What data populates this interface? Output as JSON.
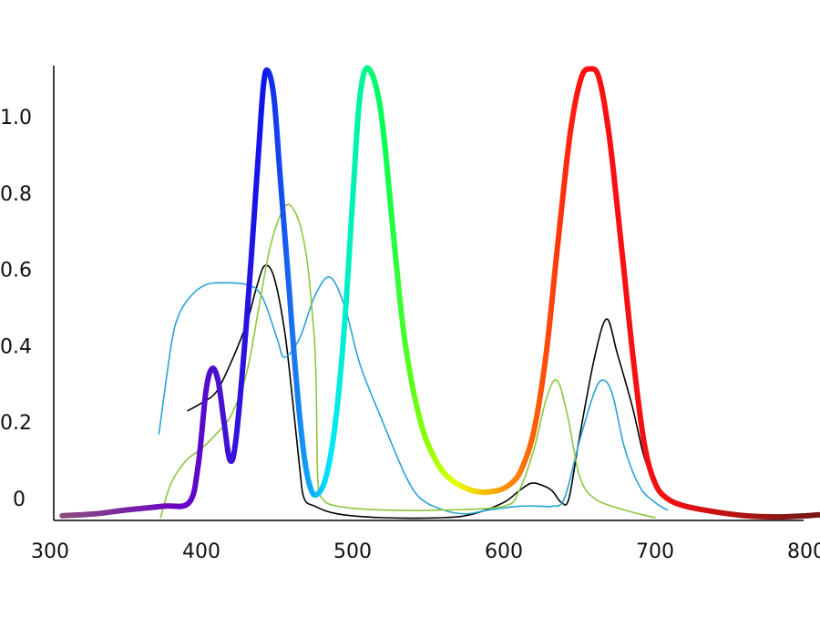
{
  "chart_data": {
    "type": "line",
    "title": "",
    "xlabel": "",
    "ylabel": "",
    "xlim": [
      300,
      800
    ],
    "ylim": [
      -0.05,
      1.15
    ],
    "x_ticks": [
      {
        "value": 300,
        "label": "300"
      },
      {
        "value": 400,
        "label": "400"
      },
      {
        "value": 500,
        "label": "500"
      },
      {
        "value": 600,
        "label": "600"
      },
      {
        "value": 700,
        "label": "700"
      },
      {
        "value": 800,
        "label": "800"
      }
    ],
    "y_ticks": [
      {
        "value": 0,
        "label": "0"
      },
      {
        "value": 0.2,
        "label": "0.2"
      },
      {
        "value": 0.4,
        "label": "0.4"
      },
      {
        "value": 0.6,
        "label": "0.6"
      },
      {
        "value": 0.8,
        "label": "0.8"
      },
      {
        "value": 1.0,
        "label": "1.0"
      }
    ],
    "grid": false,
    "legend": "none",
    "series": [
      {
        "color": "#000000",
        "points": [
          [
            391,
            0.23
          ],
          [
            400,
            0.25
          ],
          [
            410,
            0.28
          ],
          [
            420,
            0.36
          ],
          [
            430,
            0.46
          ],
          [
            437,
            0.56
          ],
          [
            442,
            0.61
          ],
          [
            448,
            0.58
          ],
          [
            455,
            0.44
          ],
          [
            460,
            0.27
          ],
          [
            465,
            0.08
          ],
          [
            468,
            0.0
          ],
          [
            475,
            -0.02
          ],
          [
            490,
            -0.04
          ],
          [
            520,
            -0.05
          ],
          [
            560,
            -0.05
          ],
          [
            580,
            -0.04
          ],
          [
            600,
            -0.01
          ],
          [
            610,
            0.02
          ],
          [
            618,
            0.04
          ],
          [
            625,
            0.035
          ],
          [
            632,
            0.02
          ],
          [
            638,
            -0.01
          ],
          [
            643,
            0.0
          ],
          [
            650,
            0.16
          ],
          [
            660,
            0.37
          ],
          [
            668,
            0.47
          ],
          [
            675,
            0.38
          ],
          [
            685,
            0.24
          ],
          [
            692,
            0.12
          ],
          [
            698,
            0.05
          ]
        ]
      },
      {
        "color": "#2aa3d8",
        "points": [
          [
            372,
            0.17
          ],
          [
            380,
            0.4
          ],
          [
            385,
            0.48
          ],
          [
            393,
            0.53
          ],
          [
            403,
            0.56
          ],
          [
            415,
            0.565
          ],
          [
            430,
            0.56
          ],
          [
            440,
            0.53
          ],
          [
            450,
            0.42
          ],
          [
            455,
            0.37
          ],
          [
            465,
            0.42
          ],
          [
            475,
            0.53
          ],
          [
            485,
            0.58
          ],
          [
            495,
            0.5
          ],
          [
            505,
            0.35
          ],
          [
            520,
            0.2
          ],
          [
            535,
            0.06
          ],
          [
            545,
            0.0
          ],
          [
            560,
            -0.03
          ],
          [
            575,
            -0.04
          ],
          [
            590,
            -0.03
          ],
          [
            610,
            -0.02
          ],
          [
            625,
            -0.02
          ],
          [
            632,
            -0.02
          ],
          [
            640,
            0.0
          ],
          [
            650,
            0.15
          ],
          [
            660,
            0.28
          ],
          [
            666,
            0.31
          ],
          [
            672,
            0.27
          ],
          [
            680,
            0.13
          ],
          [
            690,
            0.03
          ],
          [
            700,
            -0.01
          ],
          [
            708,
            -0.03
          ]
        ]
      },
      {
        "color": "#8ec63f",
        "points": [
          [
            373,
            -0.05
          ],
          [
            380,
            0.04
          ],
          [
            390,
            0.1
          ],
          [
            400,
            0.13
          ],
          [
            410,
            0.17
          ],
          [
            420,
            0.22
          ],
          [
            430,
            0.33
          ],
          [
            438,
            0.5
          ],
          [
            445,
            0.65
          ],
          [
            452,
            0.74
          ],
          [
            458,
            0.77
          ],
          [
            465,
            0.72
          ],
          [
            470,
            0.62
          ],
          [
            473,
            0.5
          ],
          [
            475,
            0.4
          ],
          [
            476,
            0.28
          ],
          [
            477,
            0.05
          ],
          [
            480,
            -0.0
          ],
          [
            490,
            -0.02
          ],
          [
            520,
            -0.03
          ],
          [
            560,
            -0.03
          ],
          [
            600,
            -0.02
          ],
          [
            610,
            0.02
          ],
          [
            620,
            0.13
          ],
          [
            628,
            0.26
          ],
          [
            635,
            0.31
          ],
          [
            642,
            0.22
          ],
          [
            650,
            0.06
          ],
          [
            660,
            -0.0
          ],
          [
            680,
            -0.03
          ],
          [
            700,
            -0.05
          ]
        ]
      },
      {
        "color": "spectrum",
        "points": [
          [
            308,
            -0.045
          ],
          [
            330,
            -0.04
          ],
          [
            350,
            -0.03
          ],
          [
            375,
            -0.02
          ],
          [
            392,
            -0.01
          ],
          [
            398,
            0.09
          ],
          [
            403,
            0.28
          ],
          [
            407,
            0.34
          ],
          [
            411,
            0.31
          ],
          [
            415,
            0.2
          ],
          [
            419,
            0.1
          ],
          [
            423,
            0.16
          ],
          [
            430,
            0.47
          ],
          [
            437,
            0.86
          ],
          [
            441,
            1.08
          ],
          [
            444,
            1.12
          ],
          [
            448,
            1.05
          ],
          [
            452,
            0.85
          ],
          [
            458,
            0.55
          ],
          [
            463,
            0.3
          ],
          [
            468,
            0.11
          ],
          [
            472,
            0.03
          ],
          [
            476,
            0.01
          ],
          [
            482,
            0.05
          ],
          [
            488,
            0.18
          ],
          [
            494,
            0.42
          ],
          [
            500,
            0.78
          ],
          [
            504,
            1.02
          ],
          [
            508,
            1.12
          ],
          [
            513,
            1.11
          ],
          [
            518,
            1.03
          ],
          [
            522,
            0.9
          ],
          [
            528,
            0.65
          ],
          [
            535,
            0.4
          ],
          [
            545,
            0.2
          ],
          [
            555,
            0.1
          ],
          [
            565,
            0.05
          ],
          [
            580,
            0.02
          ],
          [
            595,
            0.02
          ],
          [
            605,
            0.04
          ],
          [
            612,
            0.08
          ],
          [
            620,
            0.18
          ],
          [
            628,
            0.38
          ],
          [
            636,
            0.68
          ],
          [
            644,
            0.96
          ],
          [
            651,
            1.1
          ],
          [
            657,
            1.125
          ],
          [
            663,
            1.1
          ],
          [
            670,
            0.94
          ],
          [
            678,
            0.65
          ],
          [
            686,
            0.35
          ],
          [
            693,
            0.14
          ],
          [
            700,
            0.04
          ],
          [
            708,
            0.0
          ],
          [
            720,
            -0.02
          ],
          [
            740,
            -0.035
          ],
          [
            760,
            -0.045
          ],
          [
            780,
            -0.048
          ],
          [
            800,
            -0.045
          ],
          [
            810,
            -0.042
          ]
        ]
      }
    ]
  }
}
